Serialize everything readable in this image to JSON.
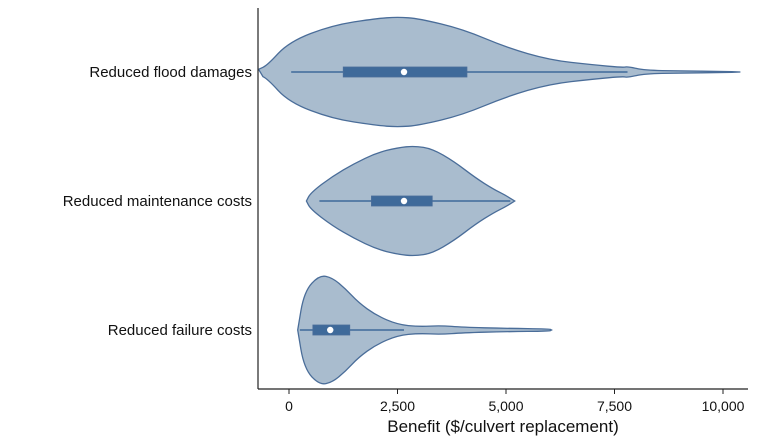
{
  "chart_data": {
    "type": "violin",
    "orientation": "horizontal",
    "xlabel": "Benefit ($/culvert replacement)",
    "ylabel": "",
    "xlim": [
      -700,
      10400
    ],
    "x_ticks": [
      0,
      2500,
      5000,
      7500,
      10000
    ],
    "x_tick_labels": [
      "0",
      "2,500",
      "5,000",
      "7,500",
      "10,000"
    ],
    "grid": false,
    "categories": [
      "Reduced flood damages",
      "Reduced maintenance costs",
      "Reduced failure costs"
    ],
    "series": [
      {
        "category": "Reduced flood damages",
        "whisker_low": 50,
        "q1": 1250,
        "median": 2650,
        "q3": 4100,
        "whisker_high": 7800,
        "max": 10400,
        "density_profile": [
          [
            -700,
            0.05
          ],
          [
            -500,
            0.12
          ],
          [
            0,
            0.55
          ],
          [
            1000,
            0.85
          ],
          [
            2000,
            0.97
          ],
          [
            2500,
            1.0
          ],
          [
            3000,
            0.97
          ],
          [
            4000,
            0.78
          ],
          [
            5000,
            0.45
          ],
          [
            6000,
            0.22
          ],
          [
            7000,
            0.13
          ],
          [
            7700,
            0.08
          ],
          [
            7800,
            0.1
          ],
          [
            8200,
            0.03
          ],
          [
            9000,
            0.02
          ],
          [
            10000,
            0.01
          ],
          [
            10400,
            0.0
          ]
        ]
      },
      {
        "category": "Reduced maintenance costs",
        "whisker_low": 700,
        "q1": 1900,
        "median": 2650,
        "q3": 3300,
        "whisker_high": 5100,
        "max": 5200,
        "density_profile": [
          [
            400,
            0.0
          ],
          [
            500,
            0.15
          ],
          [
            1000,
            0.45
          ],
          [
            1500,
            0.68
          ],
          [
            2000,
            0.87
          ],
          [
            2500,
            0.97
          ],
          [
            2900,
            1.0
          ],
          [
            3300,
            0.95
          ],
          [
            3800,
            0.72
          ],
          [
            4300,
            0.42
          ],
          [
            4700,
            0.22
          ],
          [
            5000,
            0.1
          ],
          [
            5200,
            0.0
          ]
        ]
      },
      {
        "category": "Reduced failure costs",
        "whisker_low": 250,
        "q1": 550,
        "median": 950,
        "q3": 1400,
        "whisker_high": 2650,
        "max": 6000,
        "density_profile": [
          [
            200,
            0.0
          ],
          [
            350,
            0.7
          ],
          [
            700,
            1.0
          ],
          [
            1000,
            0.95
          ],
          [
            1300,
            0.75
          ],
          [
            1600,
            0.5
          ],
          [
            2000,
            0.27
          ],
          [
            2500,
            0.1
          ],
          [
            3000,
            0.06
          ],
          [
            3500,
            0.08
          ],
          [
            4000,
            0.05
          ],
          [
            5000,
            0.03
          ],
          [
            6000,
            0.02
          ],
          [
            6050,
            0.0
          ]
        ]
      }
    ],
    "colors": {
      "violin_fill": "#a9bcce",
      "violin_stroke": "#4a6d99",
      "box_fill": "#3f6a9a",
      "whisker": "#3f6a9a",
      "median_dot": "#ffffff",
      "axis": "#222222"
    }
  }
}
